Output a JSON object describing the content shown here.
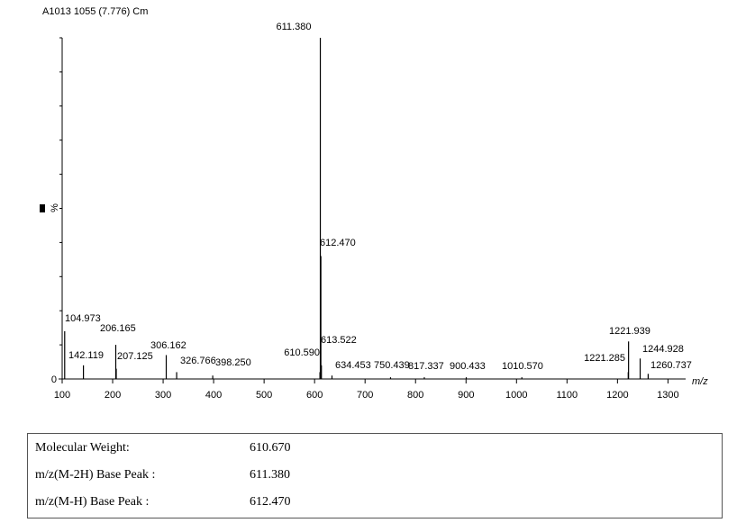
{
  "chart_data": {
    "type": "spectrum",
    "title": "A1013 1055 (7.776) Cm",
    "y_label": "%",
    "x_label": "m/z",
    "xlim": [
      100,
      1335
    ],
    "xticks": [
      100,
      200,
      300,
      400,
      500,
      600,
      700,
      800,
      900,
      1000,
      1100,
      1200,
      1300
    ],
    "ylim": [
      0,
      100
    ],
    "yticks": [
      0
    ],
    "yminor_ticks": [
      10,
      20,
      30,
      40,
      50,
      60,
      70,
      80,
      90,
      100
    ],
    "color": "#000000",
    "x": [
      104.973,
      142.119,
      206.165,
      207.125,
      306.162,
      326.766,
      398.25,
      610.59,
      611.38,
      612.47,
      613.522,
      634.453,
      750.439,
      817.337,
      900.433,
      1010.57,
      1221.285,
      1221.939,
      1244.928,
      1260.737
    ],
    "labels": [
      "104.973",
      "142.119",
      "206.165",
      "207.125",
      "306.162",
      "326.766",
      "398.250",
      "610.590",
      "611.380",
      "612.470",
      "613.522",
      "634.453",
      "750.439",
      "817.337",
      "900.433",
      "1010.570",
      "1221.285",
      "1221.939",
      "1244.928",
      "1260.737"
    ],
    "values": [
      14,
      4,
      10,
      3,
      7,
      2,
      1,
      2,
      100,
      36,
      4,
      1,
      0.5,
      0.5,
      0.5,
      0.5,
      2,
      11,
      6,
      1.5
    ]
  },
  "table": {
    "rows": [
      [
        "Molecular Weight:",
        "610.670"
      ],
      [
        "m/z(M-2H) Base Peak :",
        "611.380"
      ],
      [
        "m/z(M-H) Base Peak :",
        "612.470"
      ]
    ]
  }
}
